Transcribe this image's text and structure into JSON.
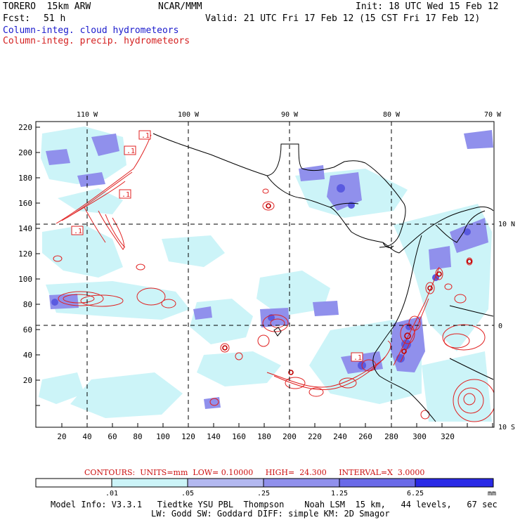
{
  "header": {
    "model": "TORERO  15km ARW",
    "org": "NCAR/MMM",
    "init": "Init: 18 UTC Wed 15 Feb 12",
    "fcst_label": "Fcst:",
    "fcst_value": "51 h",
    "valid": "Valid: 21 UTC Fri 17 Feb 12 (15 CST Fri 17 Feb 12)",
    "legend_cloud": "Column-integ. cloud hydrometeors",
    "legend_precip": "Column-integ. precip. hydrometeors"
  },
  "axes": {
    "lon_top": [
      "110 W",
      "100 W",
      "90 W",
      "80 W",
      "70 W"
    ],
    "lat_right": [
      "10 N",
      "0",
      "10 S"
    ],
    "y_ticks": [
      "220",
      "200",
      "180",
      "160",
      "140",
      "120",
      "100",
      "80",
      "60",
      "40",
      "20"
    ],
    "x_ticks": [
      "20",
      "40",
      "60",
      "80",
      "100",
      "120",
      "140",
      "160",
      "180",
      "200",
      "220",
      "240",
      "260",
      "280",
      "300",
      "320"
    ]
  },
  "contour_labels": [
    ".1",
    ".1",
    ".1",
    ".1",
    ".1"
  ],
  "contour_info": "CONTOURS:  UNITS=mm  LOW= 0.10000     HIGH=  24.300     INTERVAL=X  3.0000",
  "colorbar": {
    "labels": [
      ".01",
      ".05",
      ".25",
      "1.25",
      "6.25"
    ],
    "unit": "mm",
    "colors": [
      "#ffffff",
      "#ccf4f8",
      "#b3b8f0",
      "#9090ec",
      "#6a6ae8",
      "#3e3ee0",
      "#1a1ae6"
    ]
  },
  "footer": {
    "line1": "Model Info: V3.3.1   Tiedtke YSU PBL  Thompson    Noah LSM  15 km,   44 levels,   67 sec",
    "line2": "LW: Godd SW: Goddard DIFF: simple KM: 2D Smagor"
  },
  "colors": {
    "cloud": "#6a6ae8",
    "precip": "#e02020",
    "coast": "#000000",
    "title_blue": "#1a1acc",
    "title_red": "#d42020"
  }
}
